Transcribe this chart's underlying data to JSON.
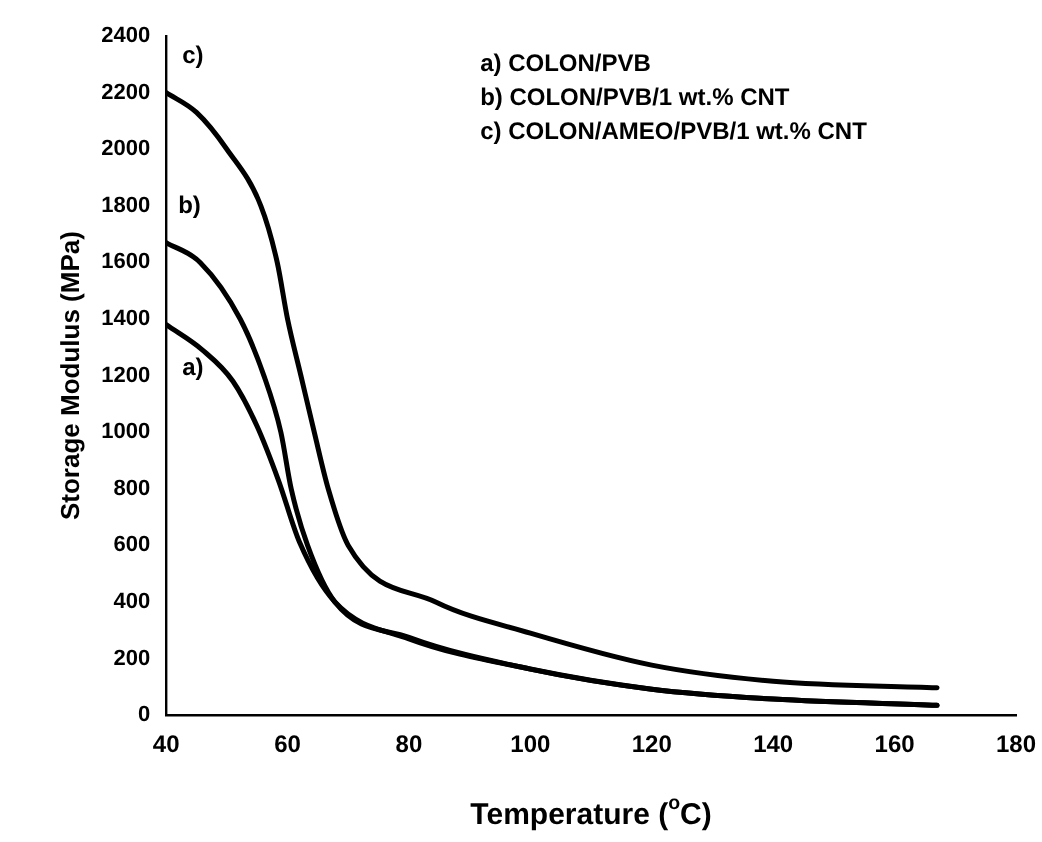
{
  "chart_data": {
    "type": "line",
    "xlabel": "Temperature ($^{o}$C)",
    "ylabel": "Storage Modulus (MPa)",
    "xlim": [
      40,
      180
    ],
    "xticks": [
      40,
      60,
      80,
      100,
      120,
      140,
      160,
      180
    ],
    "ylim": [
      0,
      2400
    ],
    "yticks": [
      0,
      200,
      400,
      600,
      800,
      1000,
      1200,
      1400,
      1600,
      1800,
      2000,
      2200,
      2400
    ],
    "grid": false,
    "legend": false,
    "marker": "none",
    "line_style": "solid",
    "annotations": [
      "a) COLON/PVB",
      "b) COLON/PVB/1 wt.% CNT",
      "c) COLON/AMEO/PVB/1 wt.% CNT"
    ],
    "series": [
      {
        "name": "a)",
        "color": "#000000",
        "x": [
          40,
          46,
          51,
          55,
          58.5,
          62,
          67.8,
          80,
          100,
          120,
          140,
          167
        ],
        "values": [
          1380,
          1290,
          1180,
          1020,
          830,
          610,
          400,
          270,
          163,
          92,
          57,
          35
        ]
      },
      {
        "name": "b)",
        "color": "#000000",
        "x": [
          40,
          45.6,
          52.2,
          56.1,
          58.9,
          60.6,
          63.3,
          67.8,
          80,
          100,
          120,
          140,
          167
        ],
        "values": [
          1670,
          1600,
          1400,
          1200,
          1000,
          800,
          600,
          400,
          275,
          163,
          92,
          57,
          35
        ]
      },
      {
        "name": "c)",
        "color": "#000000",
        "x": [
          40,
          45,
          50,
          55.6,
          58.3,
          60,
          62.2,
          64.4,
          66.7,
          70,
          84.4,
          100,
          120,
          140,
          167
        ],
        "values": [
          2200,
          2130,
          2000,
          1800,
          1600,
          1400,
          1200,
          1000,
          800,
          600,
          400,
          290,
          177,
          120,
          97
        ]
      }
    ]
  }
}
